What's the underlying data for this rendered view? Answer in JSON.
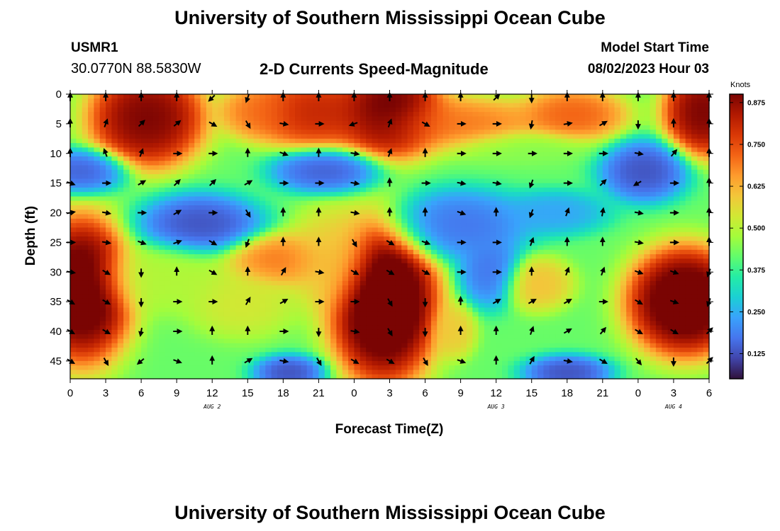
{
  "page": {
    "title_top": "University of Southern Mississippi Ocean Cube",
    "title_bottom": "University of Southern Mississippi Ocean Cube",
    "station_id": "USMR1",
    "station_coords": "30.0770N  88.5830W",
    "chart_title": "2-D Currents Speed-Magnitude",
    "model_start_label": "Model Start Time",
    "model_start_value": "08/02/2023 Hour 03"
  },
  "chart_data": {
    "type": "heatmap",
    "title": "2-D Currents Speed-Magnitude",
    "xlabel": "Forecast Time(Z)",
    "ylabel": "Depth (ft)",
    "colorbar_label": "Knots",
    "x_range_hours": [
      0,
      54
    ],
    "y_range_ft": [
      0,
      48
    ],
    "y_inverted": true,
    "x_ticks": [
      "0",
      "3",
      "6",
      "9",
      "12",
      "15",
      "18",
      "21",
      "0",
      "3",
      "6",
      "9",
      "12",
      "15",
      "18",
      "21",
      "0",
      "3",
      "6"
    ],
    "y_ticks": [
      0,
      5,
      10,
      15,
      20,
      25,
      30,
      35,
      40,
      45
    ],
    "date_labels": [
      {
        "text": "AUG 2",
        "hour": 12
      },
      {
        "text": "AUG 3",
        "hour": 36
      },
      {
        "text": "AUG 4",
        "hour": 51
      }
    ],
    "colorbar_ticks": [
      "0.875",
      "0.750",
      "0.625",
      "0.500",
      "0.375",
      "0.250",
      "0.125"
    ],
    "colorbar_tick_values": [
      0.875,
      0.75,
      0.625,
      0.5,
      0.375,
      0.25,
      0.125
    ],
    "colorbar_range": [
      0.05,
      0.9
    ],
    "colormap": [
      "#30123b",
      "#4145ab",
      "#4675ed",
      "#39a2fc",
      "#1bcfd4",
      "#24eca6",
      "#61fc6c",
      "#a4fc3b",
      "#d1e834",
      "#f3c63a",
      "#fe9b2d",
      "#f36315",
      "#d93806",
      "#b11901",
      "#7a0403"
    ],
    "blobs": [
      {
        "hour": 6.5,
        "depth": 4,
        "speed": 0.95,
        "sx": 3.2,
        "sy": 5.5
      },
      {
        "hour": 16,
        "depth": 3,
        "speed": 0.72,
        "sx": 2.2,
        "sy": 3
      },
      {
        "hour": 20.5,
        "depth": 3,
        "speed": 0.85,
        "sx": 3.5,
        "sy": 4
      },
      {
        "hour": 27,
        "depth": 3,
        "speed": 0.98,
        "sx": 3,
        "sy": 5
      },
      {
        "hour": 32.5,
        "depth": 5,
        "speed": 0.72,
        "sx": 5,
        "sy": 3
      },
      {
        "hour": 42.5,
        "depth": 3.5,
        "speed": 0.75,
        "sx": 3,
        "sy": 3
      },
      {
        "hour": 53.5,
        "depth": 3,
        "speed": 0.95,
        "sx": 2.2,
        "sy": 5
      },
      {
        "hour": 1,
        "depth": 13,
        "speed": 0.12,
        "sx": 2.5,
        "sy": 2.5
      },
      {
        "hour": 21.5,
        "depth": 13,
        "speed": 0.12,
        "sx": 3,
        "sy": 2.5
      },
      {
        "hour": 48.5,
        "depth": 13,
        "speed": 0.1,
        "sx": 2.5,
        "sy": 3.5
      },
      {
        "hour": 11,
        "depth": 22,
        "speed": 0.1,
        "sx": 3.5,
        "sy": 3.5
      },
      {
        "hour": 33,
        "depth": 22,
        "speed": 0.15,
        "sx": 4,
        "sy": 4
      },
      {
        "hour": 35.5,
        "depth": 30,
        "speed": 0.15,
        "sx": 1.8,
        "sy": 4
      },
      {
        "hour": 41,
        "depth": 20,
        "speed": 0.22,
        "sx": 3,
        "sy": 2.5
      },
      {
        "hour": 1,
        "depth": 33,
        "speed": 1.02,
        "sx": 2.8,
        "sy": 8
      },
      {
        "hour": 26.5,
        "depth": 35,
        "speed": 1.05,
        "sx": 3,
        "sy": 9
      },
      {
        "hour": 52,
        "depth": 35,
        "speed": 1.02,
        "sx": 3.2,
        "sy": 6
      },
      {
        "hour": 17.5,
        "depth": 28,
        "speed": 0.72,
        "sx": 3,
        "sy": 3
      },
      {
        "hour": 14.5,
        "depth": 35,
        "speed": 0.55,
        "sx": 3,
        "sy": 4
      },
      {
        "hour": 22,
        "depth": 28,
        "speed": 0.6,
        "sx": 2.5,
        "sy": 6
      },
      {
        "hour": 18.5,
        "depth": 47,
        "speed": 0.1,
        "sx": 2,
        "sy": 2
      },
      {
        "hour": 42,
        "depth": 47,
        "speed": 0.1,
        "sx": 2.5,
        "sy": 2
      },
      {
        "hour": 32.5,
        "depth": 40,
        "speed": 0.6,
        "sx": 1.2,
        "sy": 3
      },
      {
        "hour": 39.5,
        "depth": 32,
        "speed": 0.62,
        "sx": 2,
        "sy": 3
      },
      {
        "hour": 8,
        "depth": 31,
        "speed": 0.5,
        "sx": 4,
        "sy": 4
      },
      {
        "hour": 38,
        "depth": 9,
        "speed": 0.45,
        "sx": 4,
        "sy": 2
      }
    ],
    "background_speed": 0.42,
    "arrow_hours": [
      0,
      3,
      6,
      9,
      12,
      15,
      18,
      21,
      24,
      27,
      30,
      33,
      36,
      39,
      42,
      45,
      48,
      51,
      54
    ],
    "arrow_depths": [
      0,
      5,
      10,
      15,
      20,
      25,
      30,
      35,
      40,
      45
    ],
    "arrow_directions_deg": [
      [
        0,
        0,
        0,
        0,
        225,
        200,
        0,
        0,
        0,
        0,
        0,
        0,
        45,
        180,
        0,
        0,
        0,
        0,
        0
      ],
      [
        0,
        20,
        45,
        50,
        120,
        150,
        100,
        90,
        250,
        20,
        120,
        90,
        90,
        190,
        80,
        60,
        180,
        0,
        0
      ],
      [
        0,
        340,
        20,
        90,
        90,
        0,
        110,
        0,
        100,
        20,
        0,
        90,
        90,
        90,
        90,
        90,
        100,
        40,
        0
      ],
      [
        110,
        90,
        60,
        45,
        45,
        60,
        90,
        90,
        100,
        0,
        90,
        100,
        100,
        200,
        90,
        45,
        240,
        90,
        0
      ],
      [
        80,
        100,
        90,
        60,
        90,
        150,
        0,
        0,
        100,
        0,
        0,
        110,
        0,
        200,
        20,
        10,
        100,
        90,
        0
      ],
      [
        90,
        100,
        110,
        70,
        120,
        200,
        0,
        0,
        150,
        120,
        110,
        90,
        90,
        20,
        0,
        0,
        100,
        90,
        0
      ],
      [
        100,
        120,
        180,
        0,
        120,
        0,
        30,
        100,
        120,
        120,
        120,
        90,
        90,
        0,
        20,
        20,
        110,
        110,
        200
      ],
      [
        120,
        120,
        180,
        90,
        90,
        30,
        60,
        90,
        90,
        150,
        180,
        0,
        60,
        60,
        60,
        90,
        120,
        110,
        200
      ],
      [
        120,
        120,
        190,
        90,
        0,
        0,
        90,
        180,
        100,
        150,
        180,
        0,
        0,
        20,
        60,
        40,
        120,
        120,
        45
      ],
      [
        120,
        150,
        230,
        110,
        0,
        60,
        100,
        150,
        120,
        120,
        150,
        110,
        0,
        30,
        100,
        120,
        140,
        180,
        45
      ]
    ]
  }
}
